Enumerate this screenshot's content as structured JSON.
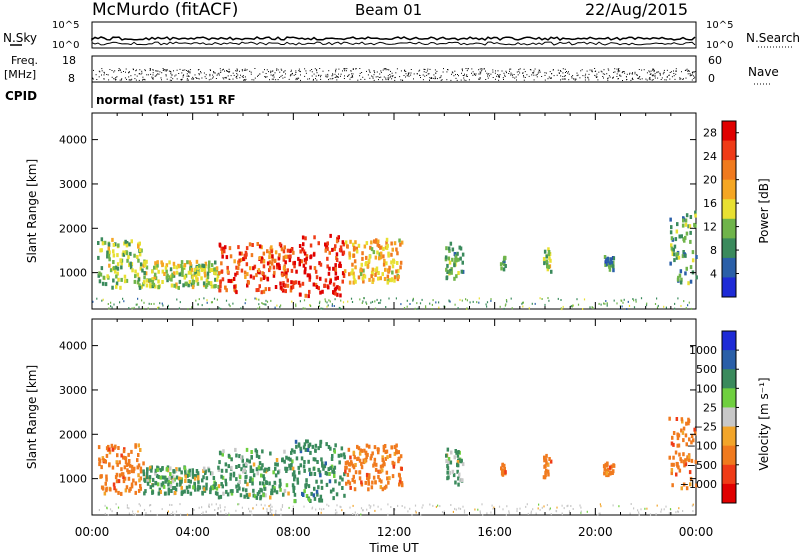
{
  "header": {
    "station": "McMurdo (fitACF)",
    "beam": "Beam 01",
    "date": "22/Aug/2015"
  },
  "strip": {
    "left_top": "N.Sky",
    "left_top_ticks": [
      "10^5",
      "10^0"
    ],
    "right_top": "N.Search",
    "right_top_ticks": [
      "10^5",
      "10^0"
    ],
    "left_mid_label": "Freq.",
    "left_mid_unit": "[MHz]",
    "left_mid_ticks": [
      "18",
      "8"
    ],
    "right_mid": "Nave",
    "right_mid_ticks": [
      "60",
      "0"
    ],
    "cpid_label": "CPID",
    "cpid_value": "normal (fast) 151 RF"
  },
  "colors": {
    "power": [
      "#1e2bd6",
      "#2a5fa8",
      "#3a8a5c",
      "#6fb44a",
      "#e8e032",
      "#f5a623",
      "#f07a1e",
      "#ef3b17",
      "#e00000"
    ],
    "velocity": [
      "#e00000",
      "#ef3b17",
      "#f07a1e",
      "#f2a52a",
      "#c8c8c8",
      "#6fcf3f",
      "#3a8a5c",
      "#2a5fa8",
      "#1e2bd6"
    ]
  },
  "chart_data": [
    {
      "type": "heatmap",
      "name": "power",
      "ylabel": "Slant Range [km]",
      "xlabel": "",
      "x_ticks": [
        "00:00",
        "04:00",
        "08:00",
        "12:00",
        "16:00",
        "20:00",
        "00:00"
      ],
      "y_ticks": [
        1000,
        2000,
        3000,
        4000
      ],
      "ylim": [
        180,
        4600
      ],
      "colorbar_label": "Power [dB]",
      "colorbar_ticks": [
        4,
        8,
        12,
        16,
        20,
        24,
        28
      ],
      "colorbar_range": [
        0,
        30
      ],
      "echo_regions": [
        {
          "t_start": 0.2,
          "t_end": 2.0,
          "r_min": 700,
          "r_max": 1800,
          "level": 12
        },
        {
          "t_start": 2.0,
          "t_end": 5.0,
          "r_min": 700,
          "r_max": 1300,
          "level": 14
        },
        {
          "t_start": 5.0,
          "t_end": 8.0,
          "r_min": 600,
          "r_max": 1700,
          "level": 24
        },
        {
          "t_start": 8.0,
          "t_end": 10.0,
          "r_min": 500,
          "r_max": 1900,
          "level": 27
        },
        {
          "t_start": 10.0,
          "t_end": 12.3,
          "r_min": 800,
          "r_max": 1800,
          "level": 18
        },
        {
          "t_start": 14.0,
          "t_end": 14.7,
          "r_min": 900,
          "r_max": 1700,
          "level": 10
        },
        {
          "t_start": 16.2,
          "t_end": 16.4,
          "r_min": 1100,
          "r_max": 1400,
          "level": 8
        },
        {
          "t_start": 17.9,
          "t_end": 18.2,
          "r_min": 1000,
          "r_max": 1600,
          "level": 12
        },
        {
          "t_start": 20.3,
          "t_end": 20.7,
          "r_min": 1100,
          "r_max": 1400,
          "level": 8
        },
        {
          "t_start": 22.9,
          "t_end": 24.0,
          "r_min": 800,
          "r_max": 2400,
          "level": 10
        }
      ]
    },
    {
      "type": "heatmap",
      "name": "velocity",
      "ylabel": "Slant Range [km]",
      "xlabel": "Time UT",
      "x_ticks": [
        "00:00",
        "04:00",
        "08:00",
        "12:00",
        "16:00",
        "20:00",
        "00:00"
      ],
      "y_ticks": [
        1000,
        2000,
        3000,
        4000
      ],
      "ylim": [
        180,
        4600
      ],
      "colorbar_label": "Velocity [m s⁻¹]",
      "colorbar_ticks": [
        "1000",
        "500",
        "100",
        "25",
        "−25",
        "−100",
        "−500",
        "−1000"
      ],
      "echo_regions": [
        {
          "t_start": 0.2,
          "t_end": 2.0,
          "r_min": 700,
          "r_max": 1800,
          "velocity": -300
        },
        {
          "t_start": 2.0,
          "t_end": 5.0,
          "r_min": 700,
          "r_max": 1300,
          "velocity": 150
        },
        {
          "t_start": 5.0,
          "t_end": 8.0,
          "r_min": 600,
          "r_max": 1700,
          "velocity": 200
        },
        {
          "t_start": 8.0,
          "t_end": 10.0,
          "r_min": 500,
          "r_max": 1900,
          "velocity": 300
        },
        {
          "t_start": 10.0,
          "t_end": 12.3,
          "r_min": 800,
          "r_max": 1800,
          "velocity": -300
        },
        {
          "t_start": 14.0,
          "t_end": 14.7,
          "r_min": 900,
          "r_max": 1700,
          "velocity": 200
        },
        {
          "t_start": 16.2,
          "t_end": 16.4,
          "r_min": 1100,
          "r_max": 1400,
          "velocity": -300
        },
        {
          "t_start": 17.9,
          "t_end": 18.2,
          "r_min": 1000,
          "r_max": 1600,
          "velocity": -300
        },
        {
          "t_start": 20.3,
          "t_end": 20.7,
          "r_min": 1100,
          "r_max": 1400,
          "velocity": -300
        },
        {
          "t_start": 22.9,
          "t_end": 24.0,
          "r_min": 800,
          "r_max": 2400,
          "velocity": -300
        }
      ]
    }
  ]
}
